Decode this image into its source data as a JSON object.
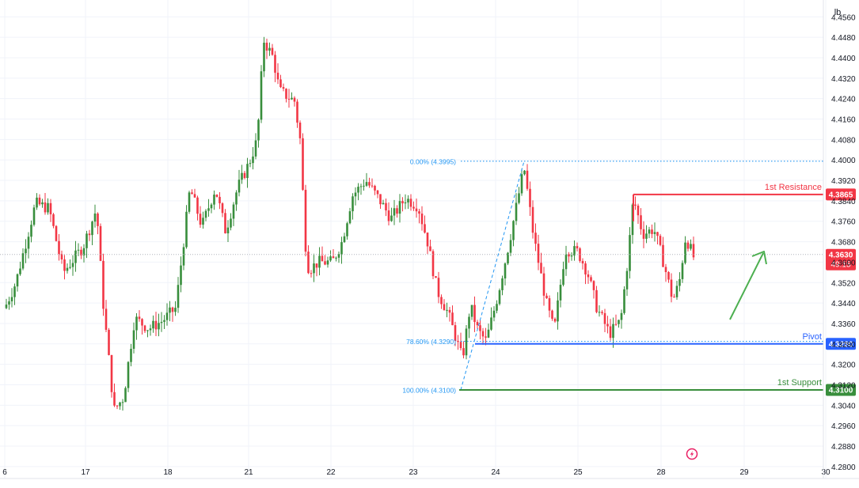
{
  "chart_data": {
    "type": "candlestick",
    "title": "",
    "xlabel": "",
    "ylabel": "",
    "ylim": [
      4.275,
      4.4595
    ],
    "scale_label": "lb",
    "x_ticks": [
      "6",
      "17",
      "18",
      "21",
      "22",
      "23",
      "24",
      "25",
      "28",
      "29",
      "30"
    ],
    "y_ticks": [
      "4.4560",
      "4.4480",
      "4.4400",
      "4.4320",
      "4.4240",
      "4.4160",
      "4.4080",
      "4.4000",
      "4.3920",
      "4.3840",
      "4.3760",
      "4.3680",
      "4.3600",
      "4.3520",
      "4.3440",
      "4.3360",
      "4.3280",
      "4.3200",
      "4.3120",
      "4.3040",
      "4.2960",
      "4.2880",
      "4.2800"
    ],
    "y_tick_values": [
      4.456,
      4.448,
      4.44,
      4.432,
      4.424,
      4.416,
      4.408,
      4.4,
      4.392,
      4.384,
      4.376,
      4.368,
      4.36,
      4.352,
      4.344,
      4.336,
      4.328,
      4.32,
      4.312,
      4.304,
      4.296,
      4.288,
      4.28
    ],
    "current_price": {
      "value": 4.363,
      "label": "4.3630",
      "countdown": "49:15"
    },
    "levels": [
      {
        "name": "1st Resistance",
        "value": 4.3865,
        "label": "4.3865",
        "color": "#f23645"
      },
      {
        "name": "Pivot",
        "value": 4.328,
        "label": "4.3280",
        "color": "#2962ff"
      },
      {
        "name": "1st Support",
        "value": 4.31,
        "label": "4.3100",
        "color": "#388e3c"
      }
    ],
    "fibonacci": [
      {
        "label": "0.00% (4.3995)",
        "value": 4.3995
      },
      {
        "label": "78.60% (4.3290)",
        "value": 4.329
      },
      {
        "label": "100.00% (4.3100)",
        "value": 4.31
      }
    ],
    "colors": {
      "up": "#388e3c",
      "down": "#f23645",
      "fib": "#2196f3",
      "arrow": "#4caf50",
      "axis_text": "#131722",
      "grid": "#f0f3fa"
    }
  }
}
